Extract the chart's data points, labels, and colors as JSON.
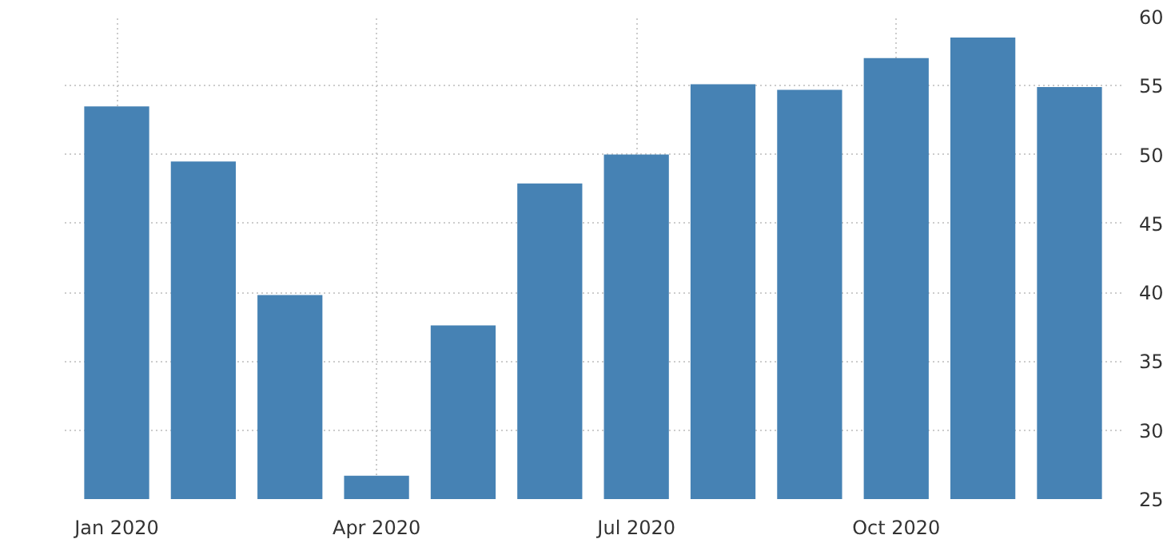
{
  "chart_data": {
    "type": "bar",
    "categories": [
      "Jan 2020",
      null,
      null,
      "Apr 2020",
      null,
      null,
      "Jul 2020",
      null,
      null,
      "Oct 2020",
      null,
      null
    ],
    "values": [
      53.5,
      49.5,
      39.8,
      26.7,
      37.6,
      47.9,
      50.0,
      55.1,
      54.7,
      57.0,
      58.5,
      54.9
    ],
    "color": "#4682b4",
    "ylim": [
      25,
      60
    ],
    "yticks": [
      25,
      30,
      35,
      40,
      45,
      50,
      55,
      60
    ],
    "grid": true
  }
}
